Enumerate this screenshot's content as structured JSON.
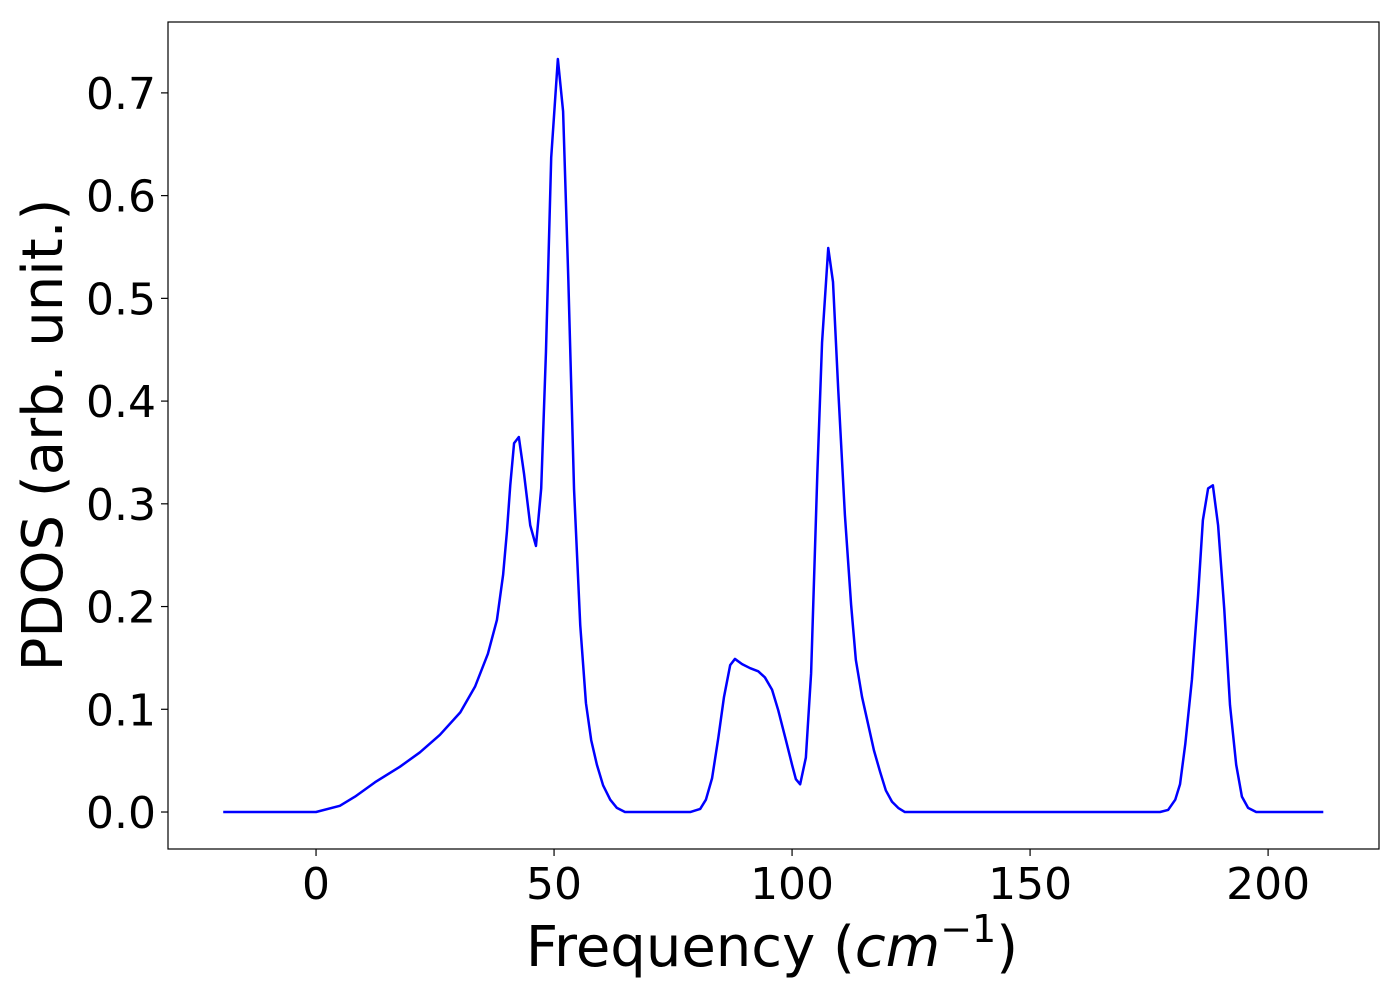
{
  "chart_data": {
    "type": "line",
    "xlabel": [
      "Frequency (",
      "cm",
      "−1",
      ")"
    ],
    "ylabel": "PDOS (arb. unit.)",
    "xlim": [
      -31.1,
      223.3
    ],
    "ylim": [
      -0.036,
      0.769
    ],
    "xticks": [
      0,
      50,
      100,
      150,
      200
    ],
    "yticks": [
      {
        "value": 0,
        "label": "0.0"
      },
      0.1,
      0.2,
      0.3,
      0.4,
      0.5,
      0.6,
      0.7
    ],
    "series": [
      {
        "color": "#0000ff",
        "x": [
          -19.5,
          0,
          5,
          8.2,
          12.4,
          17.6,
          21.8,
          26,
          30.3,
          33.4,
          36.1,
          38,
          39.3,
          40.1,
          40.8,
          41.6,
          42.6,
          43.7,
          45,
          46.2,
          47.3,
          48.3,
          49.4,
          50.8,
          51.9,
          53,
          54.2,
          55.5,
          56.7,
          57.8,
          59,
          60.3,
          61.8,
          63.2,
          64.9,
          78.6,
          80.7,
          81.9,
          83.2,
          84.5,
          85.7,
          87,
          88,
          89.5,
          91.2,
          92.9,
          94.3,
          95.8,
          97.1,
          98.7,
          100,
          100.8,
          101.7,
          102.9,
          104,
          105.3,
          106.3,
          107.6,
          108.6,
          109.7,
          111.1,
          112.4,
          113.4,
          114.7,
          116,
          117.2,
          118.5,
          119.7,
          121,
          122.3,
          123.7,
          177.3,
          179,
          180.5,
          181.5,
          182.6,
          184,
          185.3,
          186.3,
          187.4,
          188.4,
          189.5,
          190.8,
          192,
          193.3,
          194.5,
          195.8,
          197.5,
          211.6
        ],
        "values": [
          0,
          0,
          0.006,
          0.015,
          0.029,
          0.044,
          0.058,
          0.075,
          0.097,
          0.122,
          0.154,
          0.187,
          0.231,
          0.273,
          0.318,
          0.359,
          0.365,
          0.329,
          0.279,
          0.259,
          0.315,
          0.448,
          0.637,
          0.733,
          0.682,
          0.518,
          0.314,
          0.182,
          0.106,
          0.07,
          0.046,
          0.026,
          0.012,
          0.004,
          0,
          0,
          0.003,
          0.012,
          0.033,
          0.072,
          0.112,
          0.143,
          0.149,
          0.144,
          0.14,
          0.137,
          0.131,
          0.119,
          0.099,
          0.07,
          0.046,
          0.032,
          0.027,
          0.053,
          0.135,
          0.328,
          0.457,
          0.549,
          0.516,
          0.411,
          0.289,
          0.202,
          0.148,
          0.112,
          0.085,
          0.06,
          0.039,
          0.021,
          0.01,
          0.004,
          0,
          0,
          0.002,
          0.012,
          0.027,
          0.066,
          0.129,
          0.211,
          0.284,
          0.315,
          0.318,
          0.279,
          0.197,
          0.104,
          0.046,
          0.015,
          0.004,
          0,
          0
        ]
      }
    ]
  }
}
